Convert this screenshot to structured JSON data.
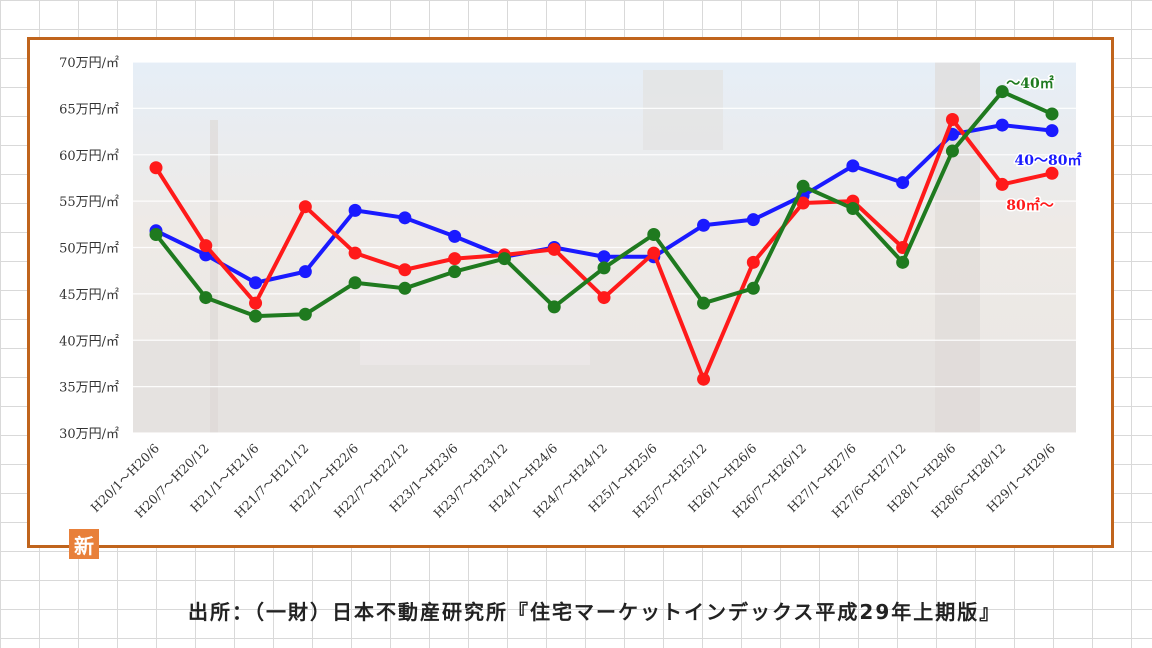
{
  "badge": "新",
  "source": "出所：（一財）日本不動産研究所『住宅マーケットインデックス平成29年上期版』",
  "chart_data": {
    "type": "line",
    "yunit": "万円/㎡",
    "ylim": [
      30,
      70
    ],
    "yticks": [
      30,
      35,
      40,
      45,
      50,
      55,
      60,
      65,
      70
    ],
    "ytick_labels": [
      "30万円/㎡",
      "35万円/㎡",
      "40万円/㎡",
      "45万円/㎡",
      "50万円/㎡",
      "55万円/㎡",
      "60万円/㎡",
      "65万円/㎡",
      "70万円/㎡"
    ],
    "grid": true,
    "categories": [
      "H20/1～H20/6",
      "H20/7～H20/12",
      "H21/1～H21/6",
      "H21/7～H21/12",
      "H22/1～H22/6",
      "H22/7～H22/12",
      "H23/1～H23/6",
      "H23/7～H23/12",
      "H24/1～H24/6",
      "H24/7～H24/12",
      "H25/1～H25/6",
      "H25/7～H25/12",
      "H26/1～H26/6",
      "H26/7～H26/12",
      "H27/1～H27/6",
      "H27/6～H27/12",
      "H28/1～H28/6",
      "H28/6～H28/12",
      "H29/1～H29/6"
    ],
    "series": [
      {
        "name": "40～80㎡",
        "color": "#1a1aff",
        "values": [
          51.8,
          49.2,
          46.2,
          47.4,
          54.0,
          53.2,
          51.2,
          49.0,
          50.0,
          49.0,
          49.0,
          52.4,
          53.0,
          55.6,
          58.8,
          57.0,
          62.2,
          63.2,
          62.6
        ]
      },
      {
        "name": "80㎡～",
        "color": "#ff1a1a",
        "values": [
          58.6,
          50.2,
          44.0,
          54.4,
          49.4,
          47.6,
          48.8,
          49.2,
          49.8,
          44.6,
          49.4,
          35.8,
          48.4,
          54.8,
          55.0,
          50.0,
          63.8,
          56.8,
          58.0
        ]
      },
      {
        "name": "～40㎡",
        "color": "#1f7a1f",
        "values": [
          51.4,
          44.6,
          42.6,
          42.8,
          46.2,
          45.6,
          47.4,
          48.8,
          43.6,
          47.8,
          51.4,
          44.0,
          45.6,
          56.6,
          54.2,
          48.4,
          60.4,
          66.8,
          64.4
        ]
      }
    ]
  }
}
